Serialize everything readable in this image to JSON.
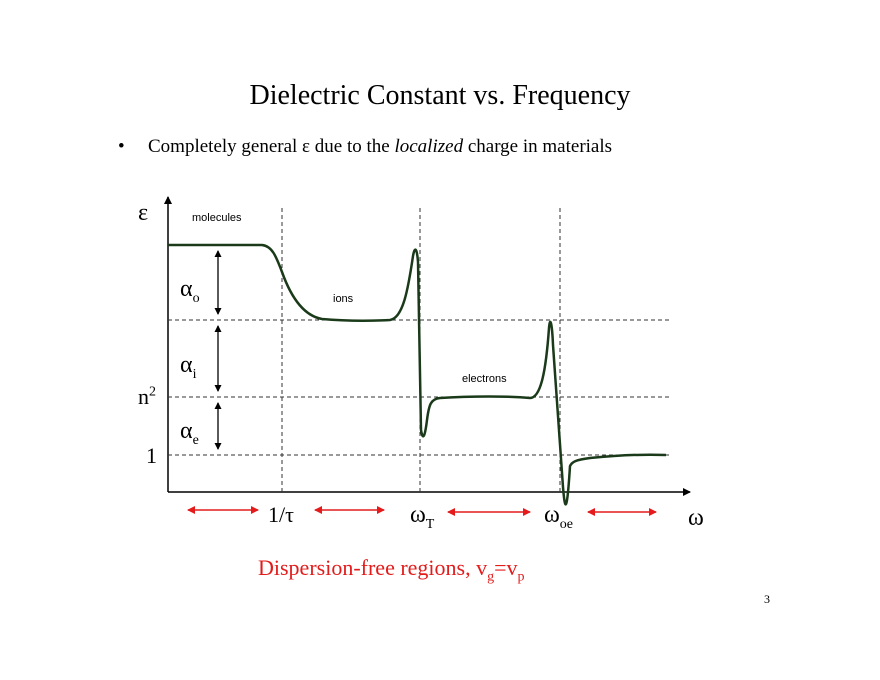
{
  "title": "Dielectric Constant vs. Frequency",
  "bullet": {
    "symbol": "•",
    "text_before": "Completely general ε due to the ",
    "text_italic": "localized",
    "text_after": " charge in materials"
  },
  "axes": {
    "y_label": "ε",
    "x_label": "ω",
    "y_ticks": {
      "n_base": "n",
      "n_sup": "2",
      "one": "1"
    },
    "x_ticks": {
      "tau": "1/τ",
      "omega_T_base": "ω",
      "omega_T_sub": "T",
      "omega_oe_base": "ω",
      "omega_oe_sub": "oe"
    }
  },
  "regions": {
    "molecules": "molecules",
    "ions": "ions",
    "electrons": "electrons"
  },
  "contributions": {
    "alpha_o_base": "α",
    "alpha_o_sub": "o",
    "alpha_i_base": "α",
    "alpha_i_sub": "i",
    "alpha_e_base": "α",
    "alpha_e_sub": "e"
  },
  "dispersion": {
    "text": "Dispersion-free regions, v",
    "sub1": "g",
    "eq": "=v",
    "sub2": "p"
  },
  "page_number": "3",
  "colors": {
    "curve": "#1a3a1a",
    "red": "#e31b1b",
    "axis": "#000000"
  }
}
